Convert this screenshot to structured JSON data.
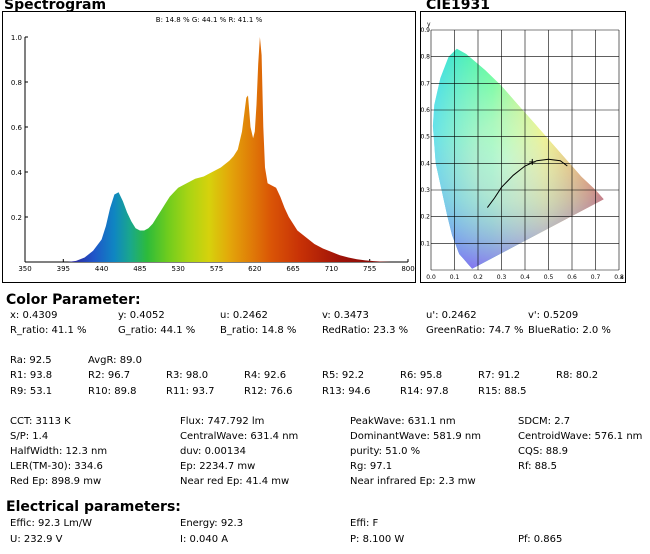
{
  "spectrogram": {
    "title": "Spectrogram",
    "summary": "B: 14.8 %  G: 44.1 %  R: 41.1 %"
  },
  "cie": {
    "title": "CIE1931"
  },
  "chart_data": [
    {
      "type": "area",
      "title": "Spectrogram",
      "xlim": [
        350,
        800
      ],
      "ylim": [
        0,
        1.0
      ],
      "x_ticks": [
        350,
        395,
        440,
        485,
        530,
        575,
        620,
        665,
        710,
        755,
        800
      ],
      "y_ticks": [
        0.2,
        0.4,
        0.6,
        0.8,
        1.0
      ],
      "y_tick_labels": [
        "0.2",
        "0.4",
        "0.6",
        "0.8",
        "1.0"
      ],
      "x": [
        400,
        410,
        420,
        430,
        440,
        445,
        450,
        455,
        460,
        465,
        470,
        475,
        480,
        485,
        490,
        495,
        500,
        505,
        510,
        515,
        520,
        525,
        530,
        540,
        550,
        560,
        570,
        580,
        590,
        595,
        600,
        605,
        610,
        612,
        615,
        618,
        620,
        622,
        624,
        626,
        628,
        630,
        632,
        635,
        640,
        645,
        650,
        655,
        660,
        665,
        670,
        680,
        690,
        700,
        710,
        720,
        730,
        740,
        750,
        760,
        770,
        780
      ],
      "y": [
        0.0,
        0.005,
        0.02,
        0.05,
        0.1,
        0.16,
        0.24,
        0.3,
        0.31,
        0.27,
        0.22,
        0.18,
        0.15,
        0.14,
        0.14,
        0.15,
        0.17,
        0.2,
        0.23,
        0.26,
        0.29,
        0.31,
        0.33,
        0.35,
        0.37,
        0.38,
        0.4,
        0.42,
        0.45,
        0.47,
        0.5,
        0.58,
        0.73,
        0.74,
        0.6,
        0.55,
        0.58,
        0.7,
        0.88,
        1.0,
        0.92,
        0.6,
        0.42,
        0.35,
        0.34,
        0.33,
        0.29,
        0.24,
        0.2,
        0.17,
        0.14,
        0.11,
        0.08,
        0.06,
        0.045,
        0.03,
        0.02,
        0.012,
        0.007,
        0.004,
        0.002,
        0.0
      ]
    },
    {
      "type": "scatter",
      "title": "CIE1931",
      "xlabel": "x",
      "ylabel": "y",
      "xlim": [
        0,
        0.8
      ],
      "ylim": [
        0,
        0.9
      ],
      "x_ticks": [
        0.0,
        0.1,
        0.2,
        0.3,
        0.4,
        0.5,
        0.6,
        0.7,
        0.8
      ],
      "x_tick_labels": [
        "0.0",
        "0.1",
        "0.2",
        "0.3",
        "0.4",
        "0.5",
        "0.6",
        "0.7",
        "0.8"
      ],
      "y_ticks": [
        0.1,
        0.2,
        0.3,
        0.4,
        0.5,
        0.6,
        0.7,
        0.8,
        0.9
      ],
      "y_tick_labels": [
        "0.1",
        "0.2",
        "0.3",
        "0.4",
        "0.5",
        "0.6",
        "0.7",
        "0.8",
        "0.9"
      ],
      "locus": [
        [
          0.175,
          0.005
        ],
        [
          0.17,
          0.01
        ],
        [
          0.16,
          0.02
        ],
        [
          0.14,
          0.04
        ],
        [
          0.12,
          0.06
        ],
        [
          0.09,
          0.13
        ],
        [
          0.07,
          0.2
        ],
        [
          0.045,
          0.3
        ],
        [
          0.02,
          0.4
        ],
        [
          0.008,
          0.54
        ],
        [
          0.014,
          0.62
        ],
        [
          0.04,
          0.72
        ],
        [
          0.075,
          0.8
        ],
        [
          0.11,
          0.83
        ],
        [
          0.15,
          0.81
        ],
        [
          0.23,
          0.75
        ],
        [
          0.3,
          0.69
        ],
        [
          0.37,
          0.62
        ],
        [
          0.44,
          0.55
        ],
        [
          0.51,
          0.48
        ],
        [
          0.58,
          0.41
        ],
        [
          0.64,
          0.35
        ],
        [
          0.7,
          0.3
        ],
        [
          0.735,
          0.265
        ]
      ],
      "planckian": [
        [
          0.24,
          0.234
        ],
        [
          0.27,
          0.27
        ],
        [
          0.3,
          0.31
        ],
        [
          0.35,
          0.355
        ],
        [
          0.4,
          0.39
        ],
        [
          0.45,
          0.41
        ],
        [
          0.5,
          0.415
        ],
        [
          0.55,
          0.41
        ],
        [
          0.58,
          0.39
        ]
      ],
      "point": [
        0.4309,
        0.4052
      ]
    }
  ],
  "color_parameter": {
    "title": "Color Parameter:",
    "row1": [
      "x: 0.4309",
      "y: 0.4052",
      "u: 0.2462",
      "v: 0.3473",
      "u': 0.2462",
      "v': 0.5209"
    ],
    "row2": [
      "R_ratio: 41.1 %",
      "G_ratio: 44.1 %",
      "B_ratio: 14.8 %",
      "RedRatio: 23.3 %",
      "GreenRatio: 74.7 %",
      "BlueRatio: 2.0 %"
    ],
    "row3": [
      "Ra: 92.5",
      "AvgR: 89.0"
    ],
    "row4": [
      "R1: 93.8",
      "R2: 96.7",
      "R3: 98.0",
      "R4: 92.6",
      "R5: 92.2",
      "R6: 95.8",
      "R7: 91.2",
      "R8: 80.2"
    ],
    "row5": [
      "R9: 53.1",
      "R10: 89.8",
      "R11: 93.7",
      "R12: 76.6",
      "R13: 94.6",
      "R14: 97.8",
      "R15: 88.5"
    ],
    "grid": [
      [
        "CCT: 3113 K",
        "Flux: 747.792 lm",
        "PeakWave: 631.1 nm",
        "SDCM: 2.7"
      ],
      [
        "S/P: 1.4",
        "CentralWave: 631.4 nm",
        "DominantWave: 581.9 nm",
        "CentroidWave: 576.1 nm"
      ],
      [
        "HalfWidth: 12.3 nm",
        "duv: 0.00134",
        "purity: 51.0 %",
        "CQS: 88.9"
      ],
      [
        "LER(TM-30): 334.6",
        "Ep: 2234.7 mw",
        "Rg: 97.1",
        "Rf: 88.5"
      ],
      [
        "Red Ep: 898.9 mw",
        "Near red Ep: 41.4 mw",
        "Near infrared Ep: 2.3 mw",
        ""
      ]
    ]
  },
  "electrical": {
    "title": "Electrical parameters:",
    "rows": [
      [
        "Effic: 92.3 Lm/W",
        "Energy: 92.3",
        "Effi: F",
        ""
      ],
      [
        "U: 232.9 V",
        "I: 0.040 A",
        "P: 8.100 W",
        "Pf: 0.865"
      ]
    ]
  }
}
